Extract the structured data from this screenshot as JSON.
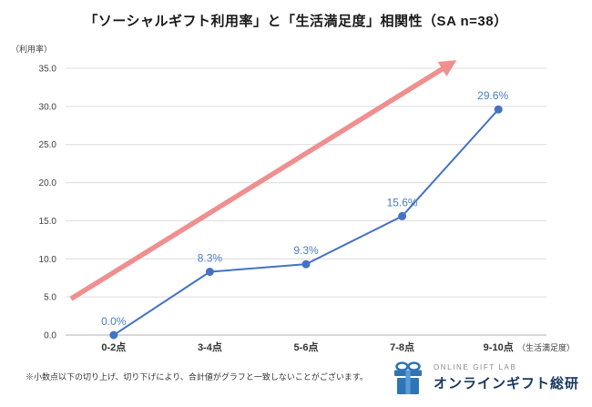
{
  "title": "「ソーシャルギフト利用率」と「生活満足度」相関性（SA n=38）",
  "footer_note": "※小数点以下の切り上げ、切り下げにより、合計値がグラフと一致しないことがございます。",
  "logo": {
    "top_text": "ONLINE GIFT LAB",
    "name": "オンラインギフト総研",
    "icon_color": "#2e75b6",
    "icon_color_light": "#5b9bd5",
    "name_color": "#17375e"
  },
  "chart_data": {
    "type": "line",
    "title": "「ソーシャルギフト利用率」と「生活満足度」相関性（SA n=38）",
    "categories": [
      "0-2点",
      "3-4点",
      "5-6点",
      "7-8点",
      "9-10点"
    ],
    "values": [
      0.0,
      8.3,
      9.3,
      15.6,
      29.6
    ],
    "point_labels": [
      "0.0%",
      "8.3%",
      "9.3%",
      "15.6%",
      "29.6%"
    ],
    "ylabel": "（利用率）",
    "xlabel": "（生活満足度）",
    "ylim": [
      0,
      35
    ],
    "ytick_step": 5,
    "grid": true,
    "legend": "none",
    "line_color": "#4472c4",
    "marker_color": "#4472c4",
    "label_color": "#4a7ebf",
    "grid_color": "#dcdcdc",
    "axis_color": "#b0b0b0",
    "tick_color": "#404040",
    "trend_arrow": {
      "present": true,
      "color": "#ef8f8f"
    }
  }
}
